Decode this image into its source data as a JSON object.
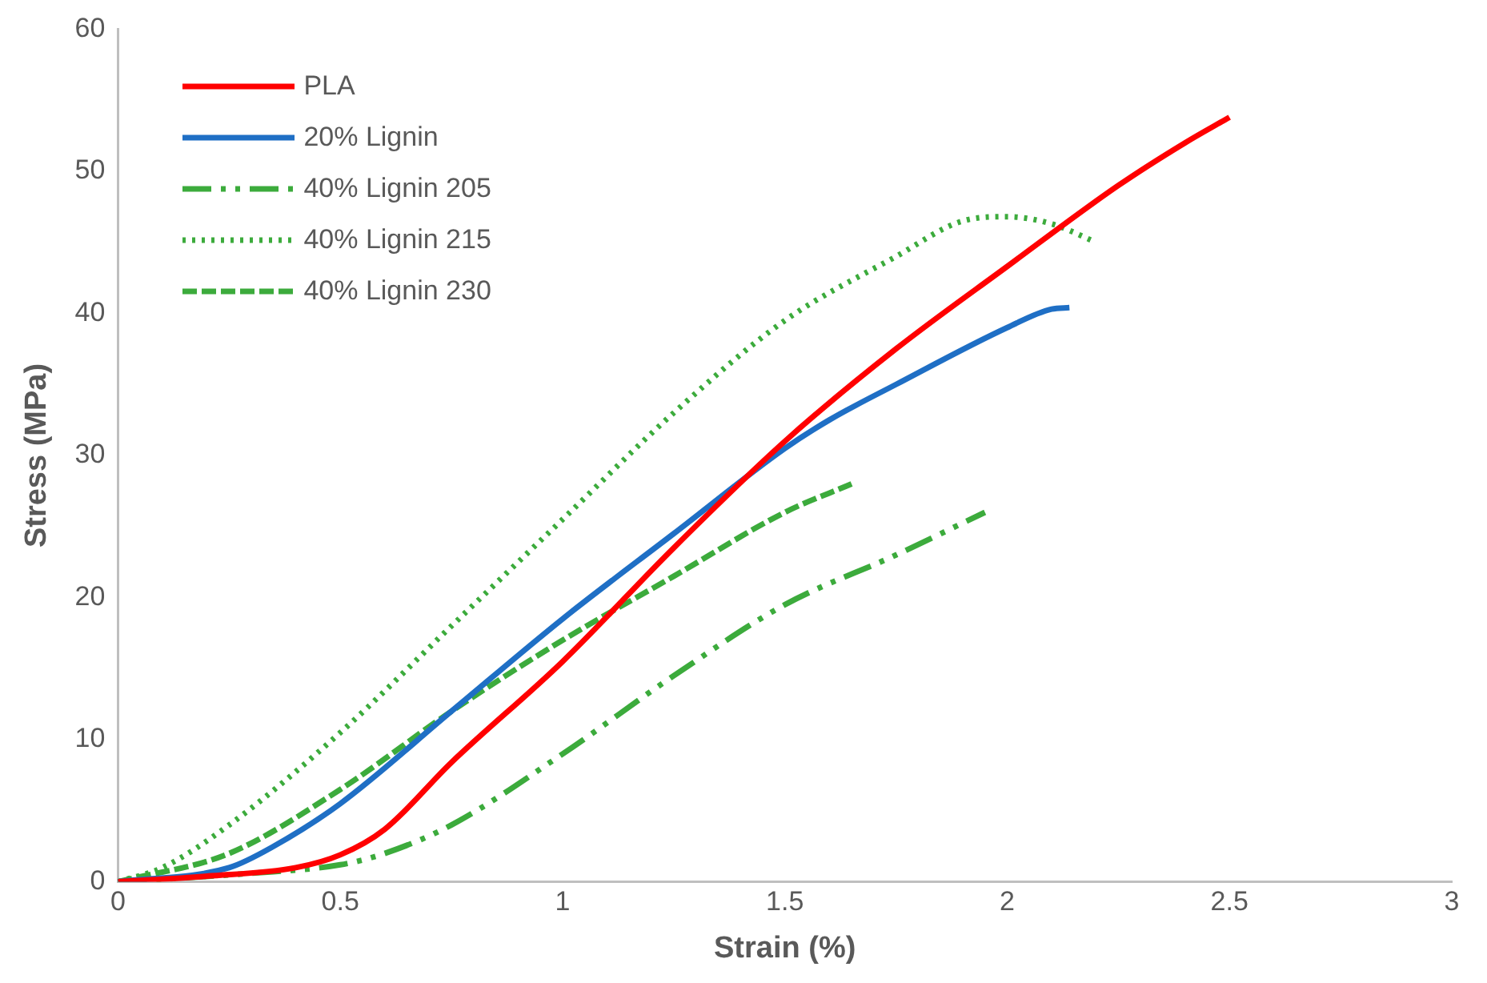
{
  "chart_data": {
    "type": "line",
    "xlabel": "Strain (%)",
    "ylabel": "Stress (MPa)",
    "xlim": [
      0,
      3
    ],
    "xticks": [
      0,
      0.5,
      1,
      1.5,
      2,
      2.5,
      3
    ],
    "ylim": [
      0,
      60
    ],
    "yticks": [
      0,
      10,
      20,
      30,
      40,
      50,
      60
    ],
    "grid": false,
    "legend": "top left",
    "marker": "none",
    "series": [
      {
        "name": "PLA",
        "color": "#ff0000",
        "line_style": "solid",
        "x": [
          0,
          0.2,
          0.4,
          0.5,
          0.6,
          0.75,
          1,
          1.25,
          1.5,
          1.75,
          2,
          2.25,
          2.4,
          2.5
        ],
        "values": [
          0,
          0.4,
          1,
          1.9,
          3.7,
          8.4,
          15.5,
          23.5,
          31,
          37.5,
          43.3,
          49,
          52,
          53.8
        ]
      },
      {
        "name": "20% Lignin",
        "color": "#1f6fc5",
        "line_style": "solid",
        "x": [
          0,
          0.25,
          0.35,
          0.5,
          0.75,
          1,
          1.25,
          1.5,
          1.6,
          1.75,
          2,
          2.1,
          2.14
        ],
        "values": [
          0,
          1,
          2.5,
          5.5,
          12,
          18.5,
          24.5,
          30.5,
          32.5,
          35,
          39,
          40.3,
          40.4
        ]
      },
      {
        "name": "40% Lignin 205",
        "color": "#3cab3c",
        "line_style": "dashdot",
        "x": [
          0,
          0.3,
          0.5,
          0.6,
          0.75,
          1,
          1.25,
          1.5,
          1.75,
          1.95
        ],
        "values": [
          0,
          0.6,
          1.2,
          2,
          4,
          9,
          14.5,
          19.5,
          23,
          26
        ]
      },
      {
        "name": "40% Lignin 215",
        "color": "#3cab3c",
        "line_style": "dotted",
        "x": [
          0,
          0.1,
          0.25,
          0.5,
          0.75,
          1,
          1.25,
          1.5,
          1.75,
          1.9,
          2,
          2.1,
          2.2
        ],
        "values": [
          0,
          1,
          4,
          10.5,
          18,
          25.5,
          33,
          39.5,
          44,
          46.5,
          46.8,
          46.3,
          45
        ]
      },
      {
        "name": "40% Lignin 230",
        "color": "#3cab3c",
        "line_style": "dashed",
        "x": [
          0,
          0.25,
          0.5,
          0.75,
          1,
          1.25,
          1.5,
          1.65
        ],
        "values": [
          0,
          2,
          6.5,
          12,
          17,
          21.5,
          26,
          28
        ]
      }
    ]
  }
}
